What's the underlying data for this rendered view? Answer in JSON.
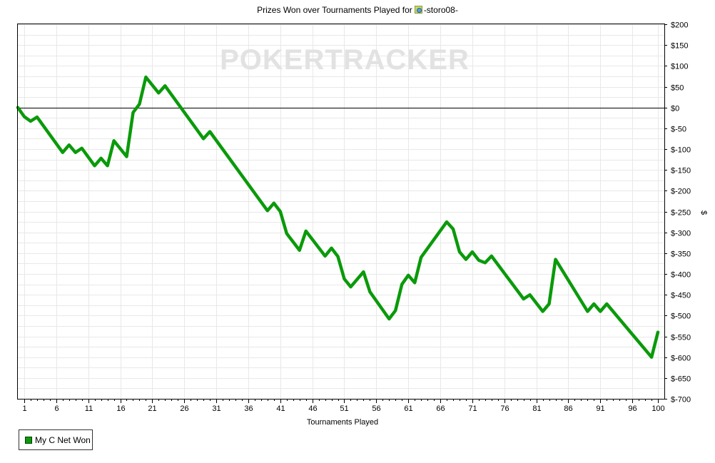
{
  "title": {
    "prefix": "Prizes Won over Tournaments Played for",
    "player": "-storo08-",
    "icon": "player-flag-icon"
  },
  "watermark": "POKERTRACKER",
  "colors": {
    "line": "#0a9a0a",
    "grid": "#e8e8e8",
    "zero_line": "#000000",
    "frame": "#000000"
  },
  "chart_data": {
    "type": "line",
    "xlabel": "Tournaments Played",
    "ylabel": "$",
    "xlim": [
      0,
      101
    ],
    "ylim": [
      -700,
      200
    ],
    "x_ticks": [
      1,
      6,
      11,
      16,
      21,
      26,
      31,
      36,
      41,
      46,
      51,
      56,
      61,
      66,
      71,
      76,
      81,
      86,
      91,
      96,
      100
    ],
    "y_ticks": [
      200,
      150,
      100,
      50,
      0,
      -50,
      -100,
      -150,
      -200,
      -250,
      -300,
      -350,
      -400,
      -450,
      -500,
      -550,
      -600,
      -650,
      -700
    ],
    "y_tick_labels": [
      "$200",
      "$150",
      "$100",
      "$50",
      "$0",
      "$-50",
      "$-100",
      "$-150",
      "$-200",
      "$-250",
      "$-300",
      "$-350",
      "$-400",
      "$-450",
      "$-500",
      "$-550",
      "$-600",
      "$-650",
      "$-700"
    ],
    "grid": true,
    "legend_position": "bottom-left",
    "series": [
      {
        "name": "My C Net Won",
        "color": "#0a9a0a",
        "points": [
          [
            0,
            0
          ],
          [
            1,
            -22
          ],
          [
            2,
            -33
          ],
          [
            3,
            -23
          ],
          [
            7,
            -108
          ],
          [
            8,
            -90
          ],
          [
            9,
            -108
          ],
          [
            10,
            -98
          ],
          [
            12,
            -140
          ],
          [
            13,
            -122
          ],
          [
            14,
            -140
          ],
          [
            15,
            -80
          ],
          [
            17,
            -118
          ],
          [
            18,
            -12
          ],
          [
            19,
            8
          ],
          [
            20,
            73
          ],
          [
            22,
            35
          ],
          [
            23,
            52
          ],
          [
            29,
            -75
          ],
          [
            30,
            -58
          ],
          [
            39,
            -248
          ],
          [
            40,
            -230
          ],
          [
            41,
            -250
          ],
          [
            42,
            -303
          ],
          [
            44,
            -343
          ],
          [
            45,
            -297
          ],
          [
            48,
            -357
          ],
          [
            49,
            -338
          ],
          [
            50,
            -358
          ],
          [
            51,
            -412
          ],
          [
            52,
            -431
          ],
          [
            54,
            -395
          ],
          [
            55,
            -443
          ],
          [
            58,
            -508
          ],
          [
            59,
            -488
          ],
          [
            60,
            -425
          ],
          [
            61,
            -403
          ],
          [
            62,
            -421
          ],
          [
            63,
            -360
          ],
          [
            67,
            -275
          ],
          [
            68,
            -292
          ],
          [
            69,
            -347
          ],
          [
            70,
            -365
          ],
          [
            71,
            -347
          ],
          [
            72,
            -367
          ],
          [
            73,
            -373
          ],
          [
            74,
            -357
          ],
          [
            79,
            -460
          ],
          [
            80,
            -450
          ],
          [
            82,
            -490
          ],
          [
            83,
            -472
          ],
          [
            84,
            -365
          ],
          [
            89,
            -490
          ],
          [
            90,
            -472
          ],
          [
            91,
            -490
          ],
          [
            92,
            -472
          ],
          [
            99,
            -600
          ],
          [
            100,
            -540
          ]
        ]
      }
    ]
  }
}
